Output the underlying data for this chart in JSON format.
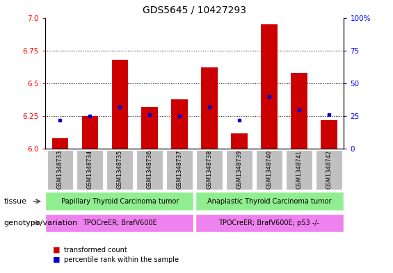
{
  "title": "GDS5645 / 10427293",
  "samples": [
    "GSM1348733",
    "GSM1348734",
    "GSM1348735",
    "GSM1348736",
    "GSM1348737",
    "GSM1348738",
    "GSM1348739",
    "GSM1348740",
    "GSM1348741",
    "GSM1348742"
  ],
  "transformed_count": [
    6.08,
    6.25,
    6.68,
    6.32,
    6.38,
    6.62,
    6.12,
    6.95,
    6.58,
    6.22
  ],
  "percentile_rank": [
    22,
    25,
    32,
    26,
    25,
    32,
    22,
    40,
    30,
    26
  ],
  "ylim_left": [
    6.0,
    7.0
  ],
  "ylim_right": [
    0,
    100
  ],
  "yticks_left": [
    6.0,
    6.25,
    6.5,
    6.75,
    7.0
  ],
  "yticks_right": [
    0,
    25,
    50,
    75,
    100
  ],
  "bar_color": "#cc0000",
  "dot_color": "#0000cc",
  "tissue_group1": "Papillary Thyroid Carcinoma tumor",
  "tissue_group2": "Anaplastic Thyroid Carcinoma tumor",
  "genotype_group1": "TPOCreER; BrafV600E",
  "genotype_group2": "TPOCreER; BrafV600E; p53 -/-",
  "tissue_color": "#90ee90",
  "genotype_color": "#ee82ee",
  "label_tissue": "tissue",
  "label_genotype": "genotype/variation",
  "legend_red": "transformed count",
  "legend_blue": "percentile rank within the sample",
  "group1_count": 5,
  "group2_count": 5,
  "xaxis_bg": "#c0c0c0",
  "title_fontsize": 10,
  "tick_fontsize": 7.5,
  "label_fontsize": 8
}
